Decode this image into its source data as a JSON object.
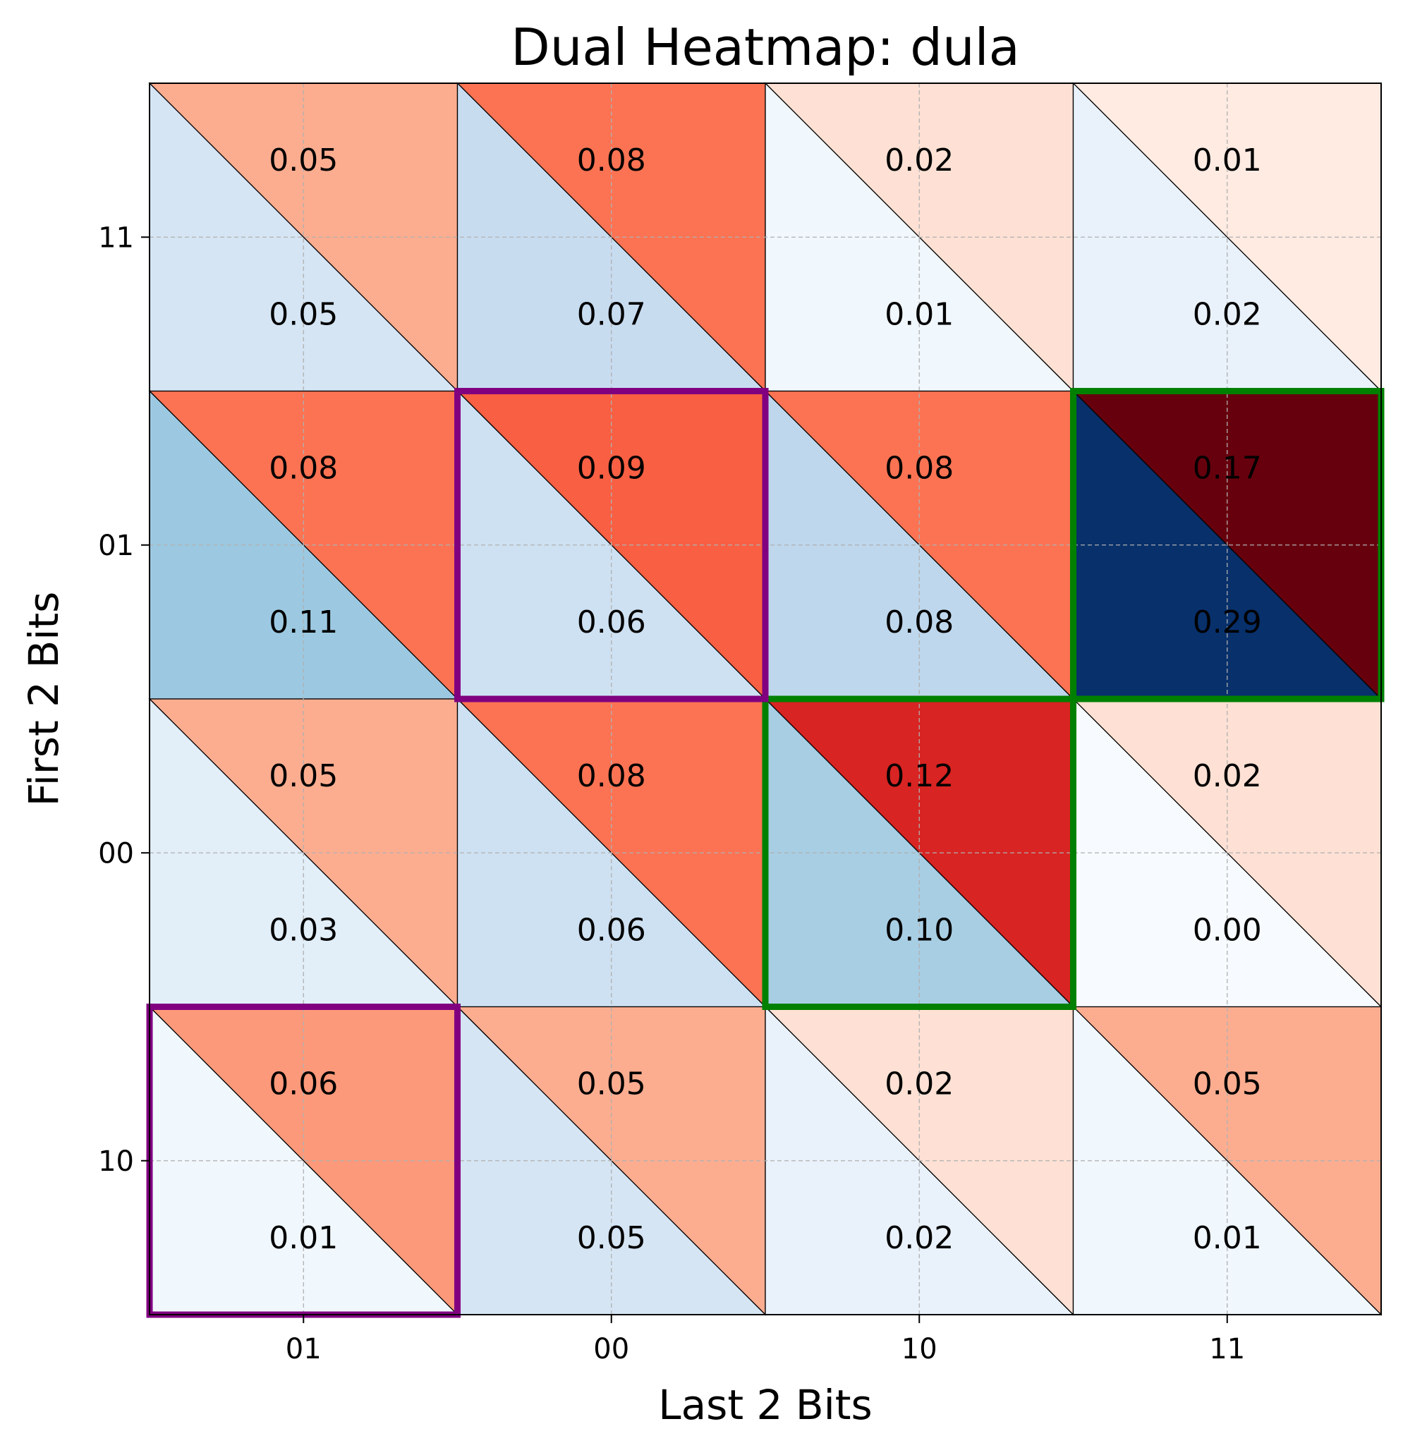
{
  "chart_data": {
    "type": "heatmap",
    "title": "Dual Heatmap: dula",
    "xlabel": "Last 2 Bits",
    "ylabel": "First 2 Bits",
    "x_categories": [
      "01",
      "00",
      "10",
      "11"
    ],
    "y_categories": [
      "11",
      "01",
      "00",
      "10"
    ],
    "upper_series": {
      "colormap": "Reds",
      "values": [
        [
          "0.05",
          "0.08",
          "0.02",
          "0.01"
        ],
        [
          "0.08",
          "0.09",
          "0.08",
          "0.17"
        ],
        [
          "0.05",
          "0.08",
          "0.12",
          "0.02"
        ],
        [
          "0.06",
          "0.05",
          "0.02",
          "0.05"
        ]
      ]
    },
    "lower_series": {
      "colormap": "Blues",
      "values": [
        [
          "0.05",
          "0.07",
          "0.01",
          "0.02"
        ],
        [
          "0.11",
          "0.06",
          "0.08",
          "0.29"
        ],
        [
          "0.03",
          "0.06",
          "0.10",
          "0.00"
        ],
        [
          "0.01",
          "0.05",
          "0.02",
          "0.01"
        ]
      ]
    },
    "color_range": [
      0,
      0.17
    ],
    "lower_color_range": [
      0,
      0.29
    ],
    "highlights": [
      {
        "row": 1,
        "col": 3,
        "color": "#008000"
      },
      {
        "row": 2,
        "col": 2,
        "color": "#008000"
      },
      {
        "row": 1,
        "col": 1,
        "color": "#800080"
      },
      {
        "row": 3,
        "col": 0,
        "color": "#800080"
      }
    ],
    "grid": true
  }
}
